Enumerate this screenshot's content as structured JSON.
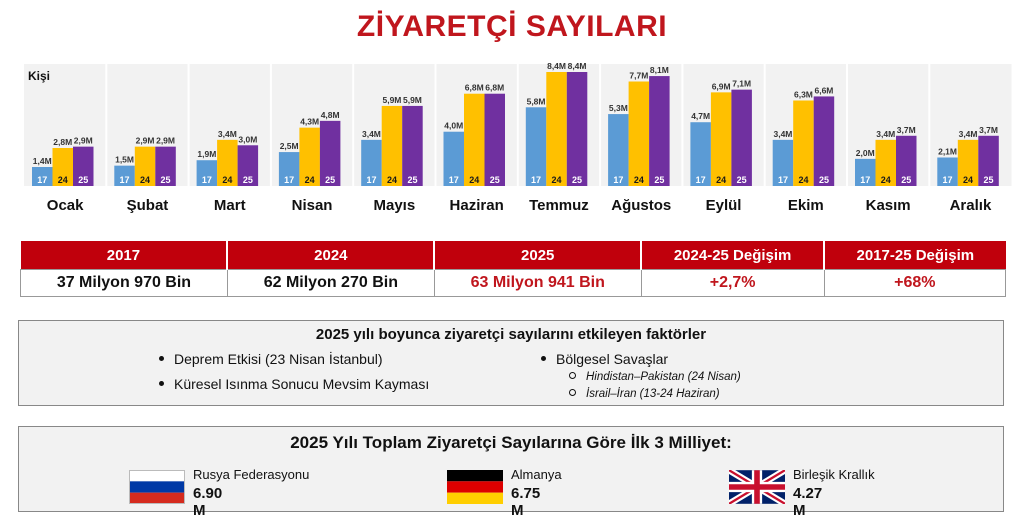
{
  "title": "ZİYARETÇİ SAYILARI",
  "chart_data": {
    "type": "bar",
    "ylabel": "Kişi",
    "categories": [
      "Ocak",
      "Şubat",
      "Mart",
      "Nisan",
      "Mayıs",
      "Haziran",
      "Temmuz",
      "Ağustos",
      "Eylül",
      "Ekim",
      "Kasım",
      "Aralık"
    ],
    "series": [
      {
        "name": "17",
        "color": "#5b9bd5",
        "values": [
          1.4,
          1.5,
          1.9,
          2.5,
          3.4,
          4.0,
          5.8,
          5.3,
          4.7,
          3.4,
          2.0,
          2.1
        ],
        "labels": [
          "1,4M",
          "1,5M",
          "1,9M",
          "2,5M",
          "3,4M",
          "4,0M",
          "5,8M",
          "5,3M",
          "4,7M",
          "3,4M",
          "2,0M",
          "2,1M"
        ]
      },
      {
        "name": "24",
        "color": "#ffc000",
        "values": [
          2.8,
          2.9,
          3.4,
          4.3,
          5.9,
          6.8,
          8.4,
          7.7,
          6.9,
          6.3,
          3.4,
          3.4
        ],
        "labels": [
          "2,8M",
          "2,9M",
          "3,4M",
          "4,3M",
          "5,9M",
          "6,8M",
          "8,4M",
          "7,7M",
          "6,9M",
          "6,3M",
          "3,4M",
          "3,4M"
        ]
      },
      {
        "name": "25",
        "color": "#7030a0",
        "values": [
          2.9,
          2.9,
          3.0,
          4.8,
          5.9,
          6.8,
          8.4,
          8.1,
          7.1,
          6.6,
          3.7,
          3.7
        ],
        "labels": [
          "2,9M",
          "2,9M",
          "3,0M",
          "4,8M",
          "5,9M",
          "6,8M",
          "8,4M",
          "8,1M",
          "7,1M",
          "6,6M",
          "3,7M",
          "3,7M"
        ]
      }
    ],
    "ylim": [
      0,
      8.4
    ],
    "grid": false,
    "legend": "none"
  },
  "summary": {
    "headers": [
      "2017",
      "2024",
      "2025",
      "2024-25 Değişim",
      "2017-25 Değişim"
    ],
    "values": [
      "37 Milyon 970 Bin",
      "62 Milyon 270 Bin",
      "63 Milyon 941 Bin",
      "+2,7%",
      "+68%"
    ]
  },
  "factors": {
    "title": "2025 yılı boyunca ziyaretçi sayılarını etkileyen faktörler",
    "left": [
      "Deprem Etkisi (23 Nisan İstanbul)",
      "Küresel Isınma Sonucu Mevsim Kayması"
    ],
    "right": "Bölgesel Savaşlar",
    "right_sub": [
      "Hindistan–Pakistan (24 Nisan)",
      "İsrail–İran  (13-24 Haziran)"
    ]
  },
  "top3": {
    "title": "2025 Yılı Toplam Ziyaretçi Sayılarına Göre İlk 3 Milliyet:",
    "countries": [
      {
        "name": "Rusya Federasyonu",
        "value": "6.90 M",
        "flag": "russia-flag-icon"
      },
      {
        "name": "Almanya",
        "value": "6.75 M",
        "flag": "germany-flag-icon"
      },
      {
        "name": "Birleşik Krallık",
        "value": "4.27 M",
        "flag": "uk-flag-icon"
      }
    ]
  }
}
